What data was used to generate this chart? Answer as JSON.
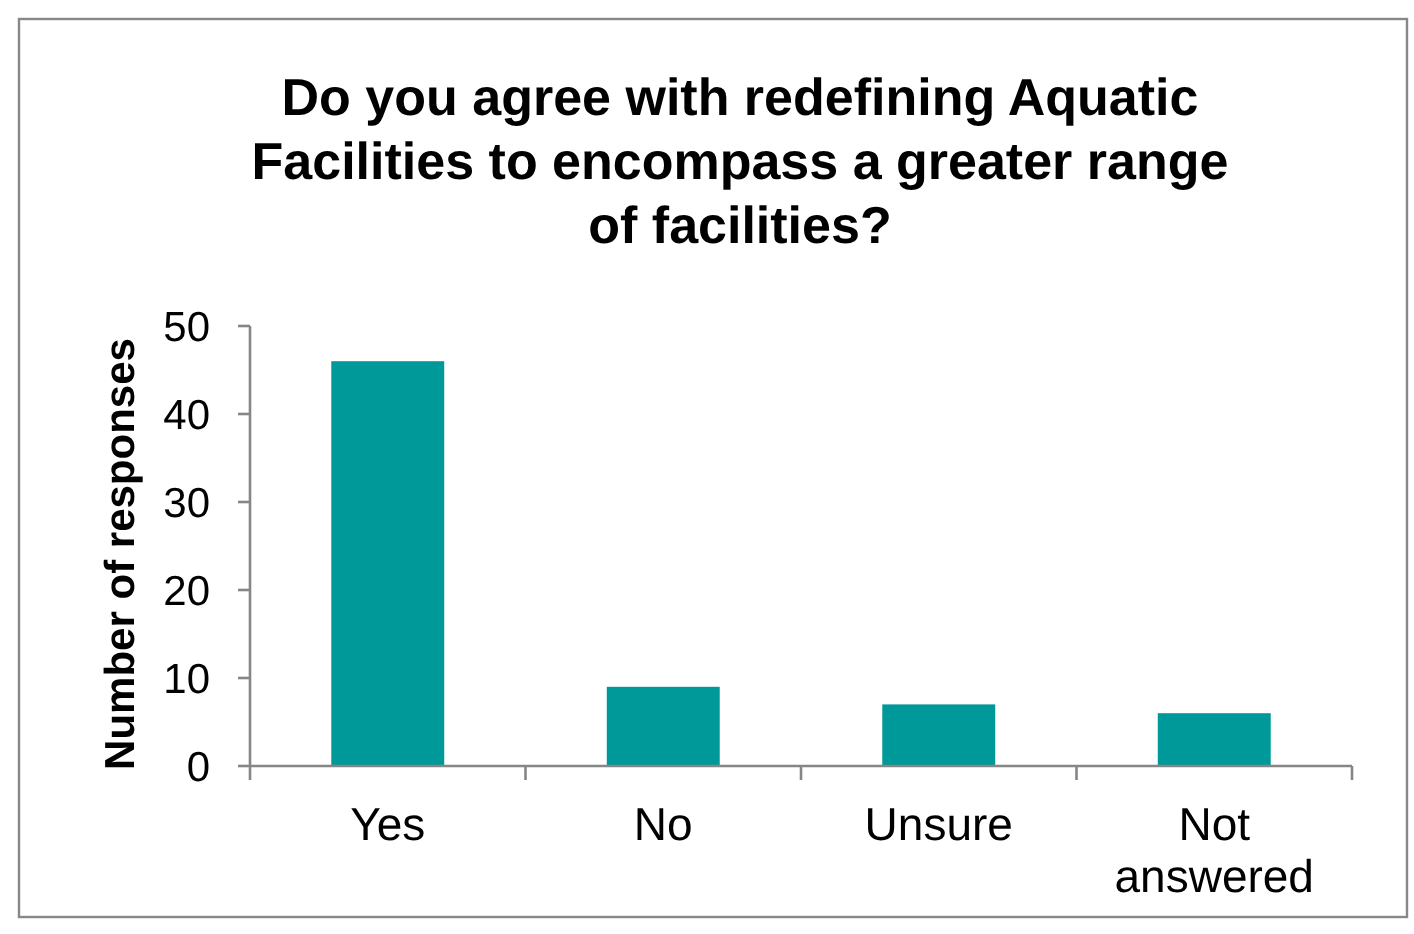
{
  "chart_data": {
    "type": "bar",
    "title": "Do you agree with redefining Aquatic Facilities to encompass a greater range of facilities?",
    "ylabel": "Number of responses",
    "categories": [
      "Yes",
      "No",
      "Unsure",
      "Not answered"
    ],
    "values": [
      46,
      9,
      7,
      6
    ],
    "color": "#009999",
    "ylim": [
      0,
      50
    ],
    "yticks": [
      0,
      10,
      20,
      30,
      40,
      50
    ],
    "grid": false
  }
}
